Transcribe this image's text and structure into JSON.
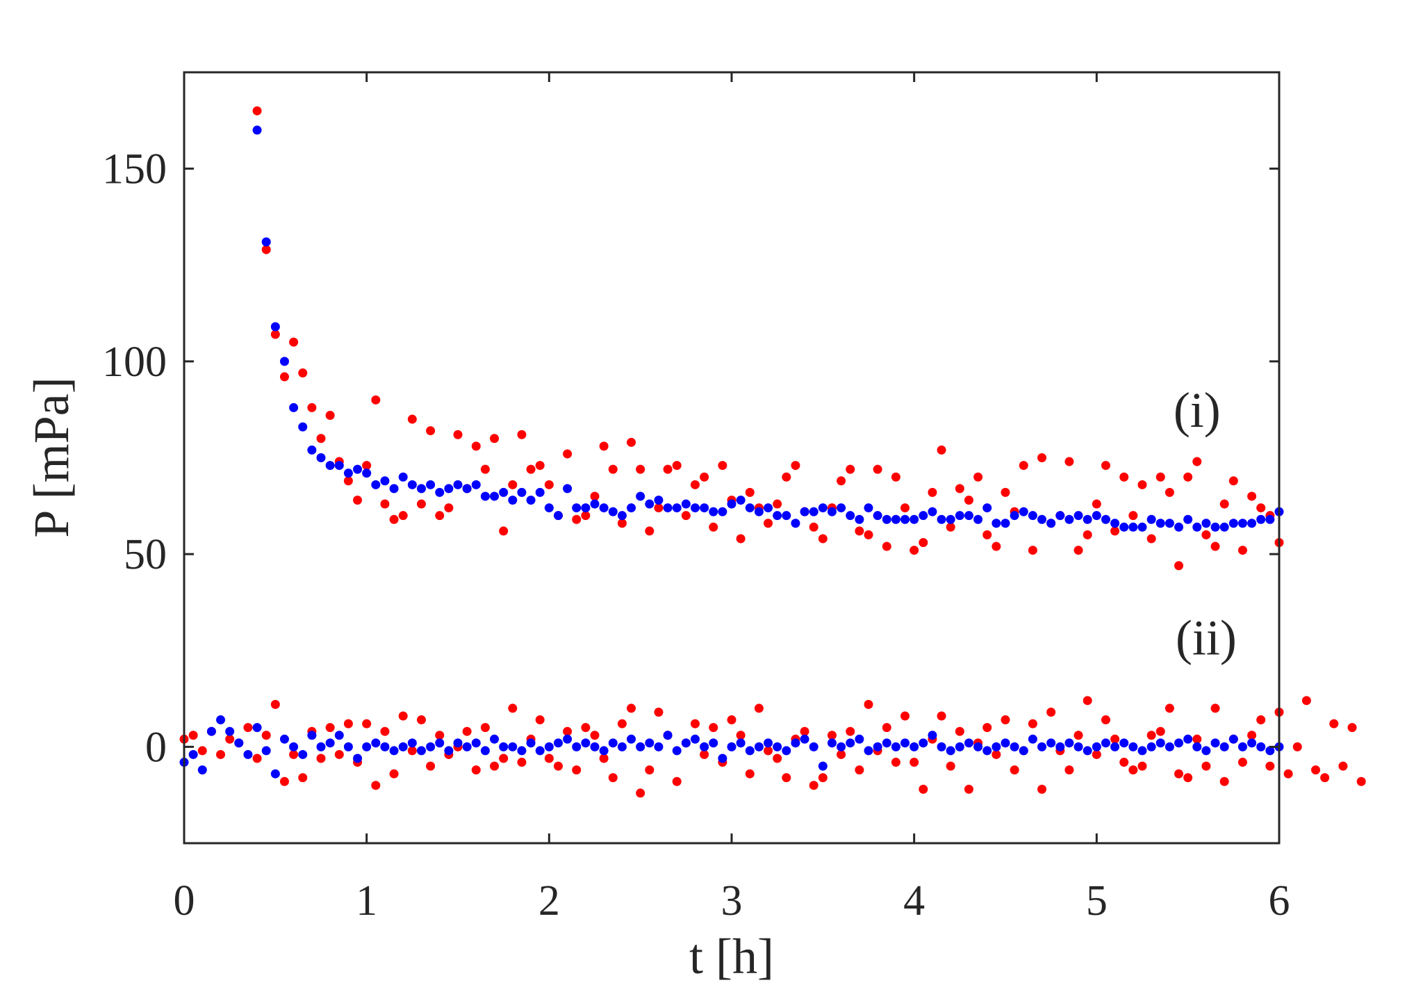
{
  "chart_data": {
    "type": "scatter",
    "title": "",
    "xlabel": "t [h]",
    "ylabel": "P [mPa]",
    "xlim": [
      0,
      6
    ],
    "ylim": [
      -25,
      175
    ],
    "xticks": [
      0,
      1,
      2,
      3,
      4,
      5,
      6
    ],
    "yticks": [
      0,
      50,
      100,
      150
    ],
    "grid": false,
    "annotations": [
      {
        "text": "(i)",
        "x": 5.55,
        "y": 83
      },
      {
        "text": "(ii)",
        "x": 5.6,
        "y": 24
      }
    ],
    "series": [
      {
        "name": "(i) red",
        "group": "(i)",
        "color": "#ff0000",
        "x_start": 0.4,
        "x_step": 0.05,
        "values": [
          165,
          129,
          107,
          96,
          105,
          97,
          88,
          80,
          86,
          74,
          69,
          64,
          73,
          90,
          63,
          59,
          60,
          85,
          63,
          82,
          60,
          62,
          81,
          67,
          78,
          72,
          80,
          56,
          68,
          81,
          72,
          73,
          68,
          60,
          76,
          59,
          60,
          65,
          78,
          72,
          58,
          79,
          72,
          56,
          62,
          72,
          73,
          60,
          68,
          70,
          57,
          73,
          64,
          54,
          66,
          62,
          58,
          63,
          70,
          73,
          61,
          57,
          54,
          62,
          69,
          72,
          56,
          55,
          72,
          52,
          70,
          62,
          51,
          53,
          66,
          77,
          57,
          67,
          64,
          70,
          55,
          52,
          66,
          61,
          73,
          51,
          75,
          58,
          60,
          74,
          51,
          55,
          63,
          73,
          56,
          70,
          60,
          68,
          54,
          70,
          66,
          47,
          70,
          74,
          55,
          52,
          63,
          69,
          51,
          65,
          62,
          60,
          53
        ]
      },
      {
        "name": "(i) blue",
        "group": "(i)",
        "color": "#0000ff",
        "x_start": 0.4,
        "x_step": 0.05,
        "values": [
          160,
          131,
          109,
          100,
          88,
          83,
          77,
          75,
          73,
          73,
          71,
          72,
          71,
          68,
          69,
          67,
          70,
          68,
          67,
          68,
          66,
          67,
          68,
          67,
          68,
          65,
          65,
          66,
          64,
          66,
          64,
          66,
          62,
          60,
          67,
          62,
          62,
          63,
          62,
          61,
          60,
          62,
          65,
          63,
          64,
          62,
          62,
          63,
          62,
          62,
          61,
          61,
          63,
          64,
          62,
          61,
          62,
          60,
          60,
          58,
          61,
          61,
          62,
          61,
          62,
          60,
          59,
          62,
          60,
          59,
          59,
          59,
          59,
          60,
          61,
          59,
          59,
          60,
          60,
          59,
          62,
          58,
          58,
          60,
          61,
          60,
          59,
          58,
          60,
          59,
          60,
          59,
          60,
          59,
          58,
          57,
          57,
          57,
          59,
          58,
          58,
          57,
          59,
          57,
          58,
          57,
          57,
          58,
          58,
          58,
          59,
          59,
          61
        ]
      },
      {
        "name": "(ii) red",
        "group": "(ii)",
        "color": "#ff0000",
        "x_start": 0,
        "x_step": 0.05,
        "values": [
          2,
          3,
          -1,
          4,
          -2,
          2,
          1,
          5,
          -3,
          3,
          11,
          -9,
          -2,
          -8,
          4,
          -3,
          5,
          -2,
          6,
          -4,
          6,
          -10,
          4,
          -7,
          8,
          -1,
          7,
          -5,
          3,
          -2,
          0,
          4,
          -6,
          5,
          -5,
          -3,
          10,
          -4,
          2,
          7,
          -3,
          -5,
          4,
          -6,
          5,
          3,
          -3,
          -8,
          6,
          10,
          -12,
          -6,
          9,
          3,
          -9,
          1,
          6,
          -2,
          5,
          -4,
          7,
          3,
          -7,
          10,
          -1,
          -3,
          -8,
          2,
          4,
          -10,
          -8,
          3,
          -2,
          4,
          -6,
          11,
          -1,
          5,
          -4,
          8,
          -4,
          -11,
          2,
          8,
          -5,
          4,
          -11,
          1,
          5,
          -2,
          7,
          -6,
          -1,
          6,
          -11,
          9,
          -1,
          -6,
          3,
          12,
          -2,
          7,
          2,
          -4,
          -6,
          -5,
          3,
          4,
          10,
          -7,
          -8,
          2,
          -5,
          10,
          -9,
          2,
          -4,
          3,
          7,
          -5,
          9,
          -7,
          0,
          12,
          -6,
          -8,
          6,
          -5,
          5,
          -9
        ]
      },
      {
        "name": "(ii) blue",
        "group": "(ii)",
        "color": "#0000ff",
        "x_start": 0,
        "x_step": 0.05,
        "values": [
          -4,
          -2,
          -6,
          4,
          7,
          4,
          1,
          -2,
          5,
          -1,
          -7,
          2,
          0,
          -2,
          3,
          0,
          1,
          3,
          0,
          -3,
          0,
          1,
          0,
          -1,
          0,
          1,
          -1,
          0,
          1,
          -1,
          1,
          0,
          1,
          -1,
          2,
          0,
          0,
          -1,
          1,
          -1,
          0,
          1,
          2,
          0,
          1,
          0,
          -1,
          1,
          0,
          2,
          0,
          1,
          0,
          3,
          -1,
          1,
          2,
          0,
          1,
          -3,
          0,
          1,
          -1,
          0,
          1,
          0,
          -1,
          1,
          2,
          0,
          -5,
          1,
          0,
          1,
          2,
          -1,
          0,
          1,
          0,
          1,
          0,
          1,
          3,
          0,
          -1,
          0,
          1,
          0,
          -1,
          0,
          1,
          0,
          -1,
          2,
          0,
          1,
          0,
          1,
          0,
          -1,
          0,
          1,
          0,
          1,
          0,
          -1,
          0,
          1,
          0,
          1,
          2,
          0,
          -1,
          1,
          0,
          2,
          0,
          1,
          0,
          -1,
          0
        ]
      }
    ]
  }
}
